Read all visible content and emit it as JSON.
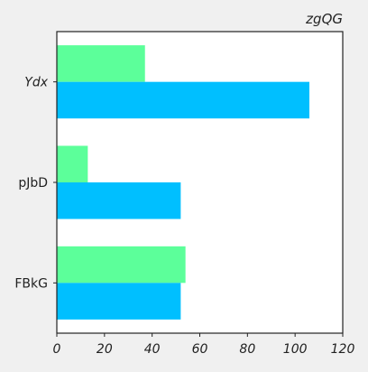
{
  "chart_data": {
    "type": "bar",
    "orientation": "horizontal",
    "title": "zgQG",
    "xlabel": "",
    "ylabel": "",
    "categories": [
      "Ydx",
      "pJbD",
      "FBkG"
    ],
    "series": [
      {
        "values": [
          37,
          13,
          54
        ],
        "color": "#5cff9a"
      },
      {
        "values": [
          106,
          52,
          52
        ],
        "color": "#00bfff"
      }
    ],
    "xlim": [
      0,
      120
    ],
    "xticks": [
      "0",
      "20",
      "40",
      "60",
      "80",
      "100",
      "120"
    ],
    "grid": false,
    "legend": "none"
  }
}
